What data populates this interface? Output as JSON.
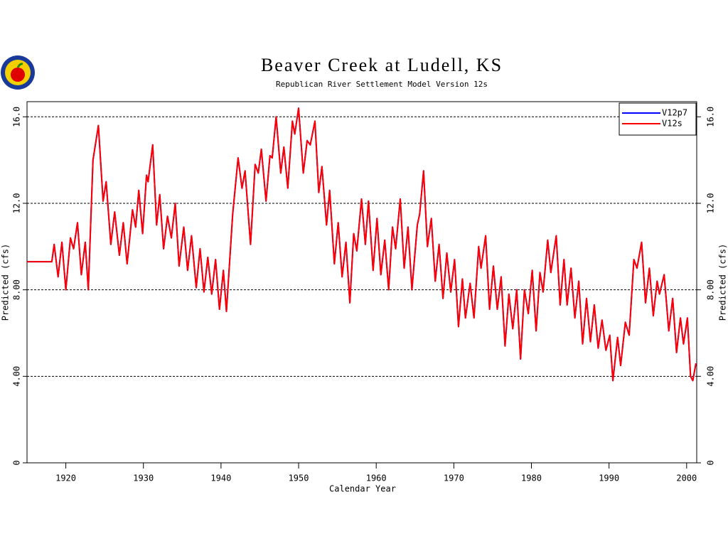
{
  "chart_data": {
    "type": "line",
    "title": "Beaver Creek at Ludell, KS",
    "subtitle": "Republican River Settlement Model Version 12s",
    "x_label": "Calendar Year",
    "y_label": "Predicted (cfs)",
    "xlim": [
      1915,
      2001.3
    ],
    "xticks": [
      1920,
      1930,
      1940,
      1950,
      1960,
      1970,
      1980,
      1990,
      2000
    ],
    "ylim": [
      0,
      16.7
    ],
    "yticks": [
      0,
      {
        "value": 4,
        "label": "4.00"
      },
      {
        "value": 8,
        "label": "8.00"
      },
      {
        "value": 12,
        "label": "12.0"
      },
      {
        "value": 16,
        "label": "16.0"
      }
    ],
    "grid": true,
    "legend": "top-right",
    "x": [
      1915,
      1918.2,
      1918.5,
      1919.0,
      1919.5,
      1920.0,
      1920.6,
      1921.0,
      1921.5,
      1922.0,
      1922.5,
      1922.9,
      1923.5,
      1924.2,
      1924.8,
      1925.2,
      1925.8,
      1926.3,
      1926.9,
      1927.4,
      1927.9,
      1928.6,
      1929.0,
      1929.4,
      1929.9,
      1930.4,
      1930.6,
      1931.2,
      1931.7,
      1932.1,
      1932.6,
      1933.1,
      1933.6,
      1934.1,
      1934.6,
      1935.2,
      1935.7,
      1936.2,
      1936.8,
      1937.3,
      1937.8,
      1938.3,
      1938.8,
      1939.3,
      1939.8,
      1940.3,
      1940.7,
      1941.5,
      1942.2,
      1942.7,
      1943.1,
      1943.8,
      1944.4,
      1944.8,
      1945.2,
      1945.8,
      1946.3,
      1946.6,
      1947.1,
      1947.7,
      1948.1,
      1948.6,
      1949.2,
      1949.5,
      1950.0,
      1950.6,
      1951.1,
      1951.5,
      1952.1,
      1952.6,
      1953.0,
      1953.6,
      1954.0,
      1954.6,
      1955.1,
      1955.6,
      1956.1,
      1956.6,
      1957.1,
      1957.5,
      1958.1,
      1958.6,
      1959.0,
      1959.6,
      1960.1,
      1960.6,
      1961.1,
      1961.6,
      1962.1,
      1962.5,
      1963.1,
      1963.6,
      1964.1,
      1964.6,
      1965.3,
      1965.6,
      1966.1,
      1966.6,
      1967.1,
      1967.6,
      1968.1,
      1968.6,
      1969.1,
      1969.6,
      1970.1,
      1970.6,
      1971.1,
      1971.5,
      1972.1,
      1972.6,
      1973.2,
      1973.5,
      1974.1,
      1974.6,
      1975.1,
      1975.6,
      1976.1,
      1976.6,
      1977.1,
      1977.6,
      1978.1,
      1978.6,
      1979.1,
      1979.6,
      1980.1,
      1980.6,
      1981.1,
      1981.5,
      1982.1,
      1982.5,
      1983.2,
      1983.7,
      1984.2,
      1984.6,
      1985.1,
      1985.6,
      1986.1,
      1986.6,
      1987.1,
      1987.6,
      1988.1,
      1988.6,
      1989.1,
      1989.6,
      1990.1,
      1990.5,
      1991.1,
      1991.5,
      1992.1,
      1992.6,
      1993.2,
      1993.6,
      1994.2,
      1994.7,
      1995.2,
      1995.7,
      1996.2,
      1996.5,
      1997.1,
      1997.7,
      1998.2,
      1998.7,
      1999.2,
      1999.6,
      2000.1,
      2000.5,
      2000.8,
      2001.2
    ],
    "series": [
      {
        "name": "V12p7",
        "color": "#0000ff",
        "values": [
          9.3,
          9.3,
          10.1,
          8.6,
          10.2,
          8.0,
          10.4,
          9.9,
          11.1,
          8.7,
          10.2,
          8.0,
          14.0,
          15.6,
          12.1,
          13.0,
          10.1,
          11.6,
          9.6,
          11.1,
          9.2,
          11.7,
          10.9,
          12.6,
          10.6,
          13.3,
          13.0,
          14.7,
          11.0,
          12.4,
          9.9,
          11.4,
          10.4,
          12.0,
          9.1,
          10.9,
          8.9,
          10.5,
          8.1,
          9.9,
          7.9,
          9.5,
          7.8,
          9.4,
          7.1,
          8.9,
          7.0,
          11.5,
          14.1,
          12.7,
          13.5,
          10.1,
          13.8,
          13.4,
          14.5,
          12.1,
          14.2,
          14.1,
          16.0,
          13.4,
          14.6,
          12.7,
          15.8,
          15.2,
          16.4,
          13.4,
          14.9,
          14.7,
          15.8,
          12.5,
          13.7,
          11.0,
          12.6,
          9.2,
          11.1,
          8.6,
          10.2,
          7.4,
          10.6,
          9.8,
          12.2,
          10.1,
          12.1,
          8.9,
          11.3,
          8.7,
          10.3,
          8.0,
          10.9,
          9.9,
          12.2,
          9.0,
          10.9,
          8.0,
          11.0,
          11.5,
          13.5,
          10.0,
          11.3,
          8.4,
          10.1,
          7.6,
          9.7,
          7.9,
          9.4,
          6.3,
          8.5,
          6.7,
          8.3,
          6.7,
          10.0,
          9.0,
          10.5,
          7.1,
          9.1,
          7.1,
          8.6,
          5.4,
          7.8,
          6.2,
          8.0,
          4.8,
          8.0,
          6.9,
          8.9,
          6.1,
          8.8,
          7.9,
          10.3,
          8.8,
          10.5,
          7.3,
          9.4,
          7.3,
          9.0,
          6.7,
          8.4,
          5.5,
          7.6,
          5.6,
          7.3,
          5.3,
          6.6,
          5.2,
          5.9,
          3.8,
          5.8,
          4.5,
          6.5,
          5.9,
          9.4,
          9.0,
          10.2,
          7.4,
          9.0,
          6.8,
          8.4,
          7.8,
          8.7,
          6.1,
          7.6,
          5.1,
          6.7,
          5.5,
          6.7,
          4.0,
          3.8,
          4.6
        ]
      },
      {
        "name": "V12s",
        "color": "#ff0000",
        "values": [
          9.3,
          9.3,
          10.1,
          8.6,
          10.2,
          8.0,
          10.4,
          9.9,
          11.1,
          8.7,
          10.2,
          8.0,
          14.0,
          15.6,
          12.1,
          13.0,
          10.1,
          11.6,
          9.6,
          11.1,
          9.2,
          11.7,
          10.9,
          12.6,
          10.6,
          13.3,
          13.0,
          14.7,
          11.0,
          12.4,
          9.9,
          11.4,
          10.4,
          12.0,
          9.1,
          10.9,
          8.9,
          10.5,
          8.1,
          9.9,
          7.9,
          9.5,
          7.8,
          9.4,
          7.1,
          8.9,
          7.0,
          11.5,
          14.1,
          12.7,
          13.5,
          10.1,
          13.8,
          13.4,
          14.5,
          12.1,
          14.2,
          14.1,
          16.0,
          13.4,
          14.6,
          12.7,
          15.8,
          15.2,
          16.4,
          13.4,
          14.9,
          14.7,
          15.8,
          12.5,
          13.7,
          11.0,
          12.6,
          9.2,
          11.1,
          8.6,
          10.2,
          7.4,
          10.6,
          9.8,
          12.2,
          10.1,
          12.1,
          8.9,
          11.3,
          8.7,
          10.3,
          8.0,
          10.9,
          9.9,
          12.2,
          9.0,
          10.9,
          8.0,
          11.0,
          11.5,
          13.5,
          10.0,
          11.3,
          8.4,
          10.1,
          7.6,
          9.7,
          7.9,
          9.4,
          6.3,
          8.5,
          6.7,
          8.3,
          6.7,
          10.0,
          9.0,
          10.5,
          7.1,
          9.1,
          7.1,
          8.6,
          5.4,
          7.8,
          6.2,
          8.0,
          4.8,
          8.0,
          6.9,
          8.9,
          6.1,
          8.8,
          7.9,
          10.3,
          8.8,
          10.5,
          7.3,
          9.4,
          7.3,
          9.0,
          6.7,
          8.4,
          5.5,
          7.6,
          5.6,
          7.3,
          5.3,
          6.6,
          5.2,
          5.9,
          3.8,
          5.8,
          4.5,
          6.5,
          5.9,
          9.4,
          9.0,
          10.2,
          7.4,
          9.0,
          6.8,
          8.4,
          7.8,
          8.7,
          6.1,
          7.6,
          5.1,
          6.7,
          5.5,
          6.7,
          4.0,
          3.8,
          4.6
        ]
      }
    ]
  }
}
